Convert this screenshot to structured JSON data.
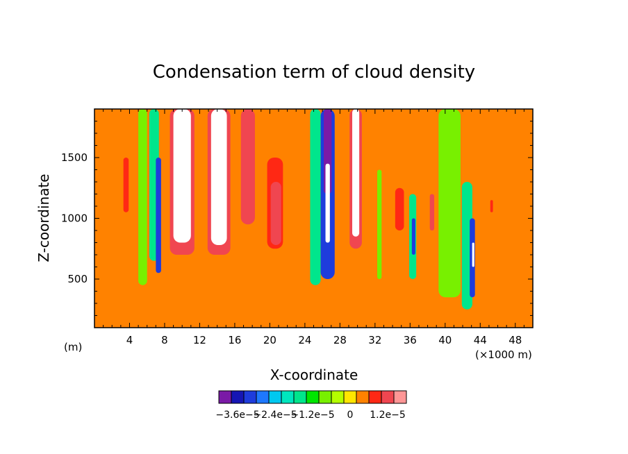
{
  "chart_data": {
    "type": "heatmap",
    "title": "Condensation term of cloud density",
    "xlabel": "X-coordinate",
    "ylabel": "Z-coordinate",
    "x_unit_left": "(m)",
    "x_unit_right": "(×1000 m)",
    "xlim": [
      0,
      50
    ],
    "ylim": [
      100,
      1900
    ],
    "x_ticks": [
      4,
      8,
      12,
      16,
      20,
      24,
      28,
      32,
      36,
      40,
      44,
      48
    ],
    "x_tick_labels": [
      "4",
      "8",
      "12",
      "16",
      "20",
      "24",
      "28",
      "32",
      "36",
      "40",
      "44",
      "48"
    ],
    "y_ticks": [
      500,
      1000,
      1500
    ],
    "y_tick_labels": [
      "500",
      "1000",
      "1500"
    ],
    "colorbar": {
      "colors": [
        "#7a1aa6",
        "#1616b4",
        "#1e3cdc",
        "#1e78ff",
        "#00c8f0",
        "#00e6be",
        "#00e68c",
        "#00e600",
        "#78f000",
        "#b4ff00",
        "#ffe600",
        "#ff8200",
        "#ff2814",
        "#f04650",
        "#ff9696"
      ],
      "labels": [
        {
          "text": "−3.6e−5",
          "at": -3.6
        },
        {
          "text": "−2.4e−5",
          "at": -2.4
        },
        {
          "text": "−1.2e−5",
          "at": -1.2
        },
        {
          "text": "0",
          "at": 0
        },
        {
          "text": "1.2e−5",
          "at": 1.2
        }
      ],
      "min": -4.2,
      "max": 1.8,
      "step": 0.4
    },
    "background_value": 0.3,
    "columns": [
      {
        "x": 0.8,
        "w": 1.6,
        "v": 0.5,
        "z0": 100,
        "z1": 1900
      },
      {
        "x": 3.6,
        "w": 0.6,
        "v": 0.9,
        "z0": 1050,
        "z1": 1500
      },
      {
        "x": 5.5,
        "w": 1.0,
        "v": -0.9,
        "z0": 450,
        "z1": 1900
      },
      {
        "x": 6.8,
        "w": 1.1,
        "v": -1.6,
        "z0": 650,
        "z1": 1900
      },
      {
        "x": 7.3,
        "w": 0.6,
        "v": -3.2,
        "z0": 550,
        "z1": 1500
      },
      {
        "x": 10.0,
        "w": 2.8,
        "v": 1.2,
        "z0": 700,
        "z1": 1900
      },
      {
        "x": 10.0,
        "w": 2.0,
        "v": 2.0,
        "z0": 800,
        "z1": 1900
      },
      {
        "x": 14.2,
        "w": 2.6,
        "v": 1.2,
        "z0": 700,
        "z1": 1900
      },
      {
        "x": 14.2,
        "w": 1.8,
        "v": 2.0,
        "z0": 780,
        "z1": 1900
      },
      {
        "x": 17.5,
        "w": 1.6,
        "v": 1.1,
        "z0": 950,
        "z1": 1900
      },
      {
        "x": 17.5,
        "w": 1.0,
        "v": 1.4,
        "z0": 1500,
        "z1": 1900
      },
      {
        "x": 20.6,
        "w": 1.8,
        "v": 0.9,
        "z0": 750,
        "z1": 1500
      },
      {
        "x": 20.7,
        "w": 1.2,
        "v": 1.2,
        "z0": 780,
        "z1": 1300
      },
      {
        "x": 25.2,
        "w": 1.2,
        "v": -1.8,
        "z0": 450,
        "z1": 1900
      },
      {
        "x": 26.6,
        "w": 1.6,
        "v": -3.2,
        "z0": 500,
        "z1": 1900
      },
      {
        "x": 26.6,
        "w": 0.9,
        "v": -4.0,
        "z0": 1200,
        "z1": 1900
      },
      {
        "x": 26.6,
        "w": 0.5,
        "v": 2.0,
        "z0": 800,
        "z1": 1450
      },
      {
        "x": 29.8,
        "w": 1.4,
        "v": 1.2,
        "z0": 750,
        "z1": 1900
      },
      {
        "x": 29.8,
        "w": 0.8,
        "v": 2.0,
        "z0": 850,
        "z1": 1900
      },
      {
        "x": 32.5,
        "w": 0.5,
        "v": -0.8,
        "z0": 500,
        "z1": 1400
      },
      {
        "x": 34.8,
        "w": 1.0,
        "v": 0.9,
        "z0": 900,
        "z1": 1250
      },
      {
        "x": 36.3,
        "w": 0.8,
        "v": -1.6,
        "z0": 500,
        "z1": 1200
      },
      {
        "x": 36.4,
        "w": 0.4,
        "v": -3.2,
        "z0": 700,
        "z1": 1000
      },
      {
        "x": 38.5,
        "w": 0.5,
        "v": 1.0,
        "z0": 900,
        "z1": 1200
      },
      {
        "x": 40.5,
        "w": 2.5,
        "v": -0.8,
        "z0": 350,
        "z1": 1900
      },
      {
        "x": 42.5,
        "w": 1.2,
        "v": -1.6,
        "z0": 250,
        "z1": 1300
      },
      {
        "x": 43.1,
        "w": 0.6,
        "v": -3.2,
        "z0": 350,
        "z1": 1000
      },
      {
        "x": 43.2,
        "w": 0.25,
        "v": 2.0,
        "z0": 600,
        "z1": 800
      },
      {
        "x": 45.3,
        "w": 0.3,
        "v": 0.9,
        "z0": 1050,
        "z1": 1150
      },
      {
        "x": 48.5,
        "w": 2.8,
        "v": 0.5,
        "z0": 100,
        "z1": 1900
      }
    ]
  }
}
